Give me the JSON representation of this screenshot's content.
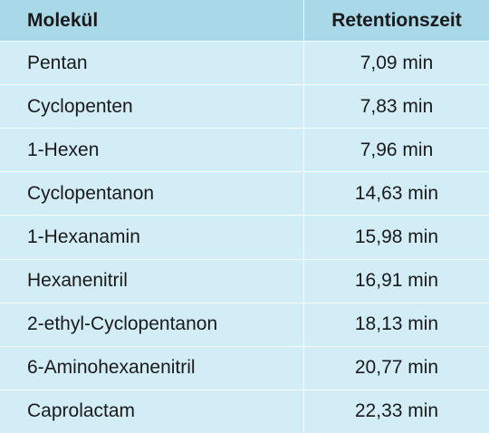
{
  "table": {
    "headers": {
      "molecule": "Molekül",
      "retention": "Retentionszeit"
    },
    "rows": [
      {
        "molecule": "Pentan",
        "retention": "7,09 min"
      },
      {
        "molecule": "Cyclopenten",
        "retention": "7,83 min"
      },
      {
        "molecule": "1-Hexen",
        "retention": "7,96 min"
      },
      {
        "molecule": "Cyclopentanon",
        "retention": "14,63 min"
      },
      {
        "molecule": "1-Hexanamin",
        "retention": "15,98 min"
      },
      {
        "molecule": "Hexanenitril",
        "retention": "16,91 min"
      },
      {
        "molecule": "2-ethyl-Cyclopentanon",
        "retention": "18,13 min"
      },
      {
        "molecule": "6-Aminohexanenitril",
        "retention": "20,77 min"
      },
      {
        "molecule": "Caprolactam",
        "retention": "22,33 min"
      }
    ]
  },
  "colors": {
    "header_bg": "#a9d8e9",
    "row_bg": "#d3edf6",
    "divider": "#ffffff"
  }
}
